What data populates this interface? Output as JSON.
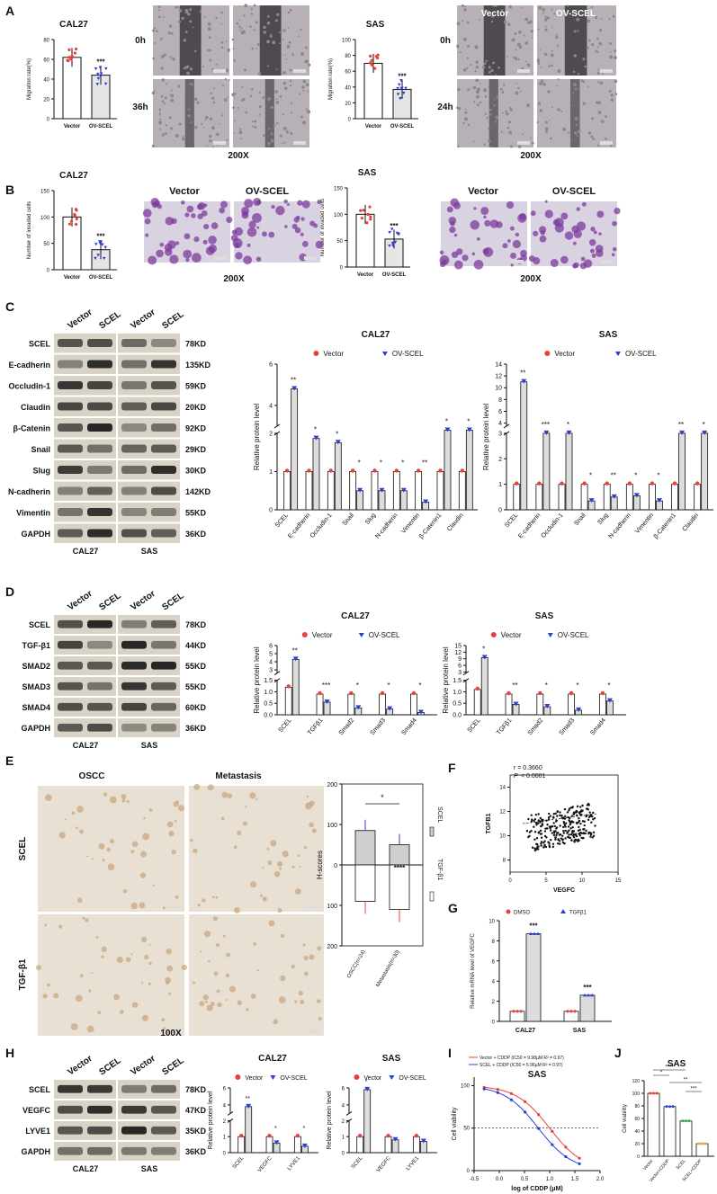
{
  "colors": {
    "vector": "#e8413c",
    "ov": "#2b3fd6",
    "black": "#111111",
    "dmso": "#e8413c",
    "tgfb": "#2b3fd6",
    "crystal": "#7b3b9e",
    "ihc_brown": "#c9a27a",
    "gel": "#d8d3c6"
  },
  "panelA": {
    "label": "A",
    "mag": "200X",
    "cal27": {
      "title": "CAL27",
      "ylabel": "Migration rate(%)",
      "yticks": [
        "0",
        "20",
        "40",
        "60",
        "80"
      ],
      "cats": [
        "Vector",
        "OV-SCEL"
      ],
      "sig": "***",
      "values": [
        62,
        44
      ],
      "ylim": [
        0,
        80
      ]
    },
    "sas": {
      "title": "SAS",
      "ylabel": "Migration rate(%)",
      "yticks": [
        "0",
        "20",
        "40",
        "60",
        "80",
        "100"
      ],
      "cats": [
        "Vector",
        "OV-SCEL"
      ],
      "sig": "***",
      "values": [
        70,
        37
      ],
      "ylim": [
        0,
        100
      ]
    },
    "img_cols": [
      "Vector",
      "OV-SCEL"
    ],
    "rows_cal27": [
      "0h",
      "36h"
    ],
    "rows_sas": [
      "0h",
      "24h"
    ]
  },
  "panelB": {
    "label": "B",
    "mag": "200X",
    "cal27": {
      "title": "CAL27",
      "ylabel": "Number of invaded cells",
      "yticks": [
        "0",
        "50",
        "100",
        "150"
      ],
      "cats": [
        "Vector",
        "OV-SCEL"
      ],
      "sig": "***",
      "values": [
        100,
        38
      ],
      "ylim": [
        0,
        150
      ]
    },
    "sas": {
      "title": "SAS",
      "ylabel": "Number of invaded cells",
      "yticks": [
        "0",
        "50",
        "100",
        "150"
      ],
      "cats": [
        "Vector",
        "OV-SCEL"
      ],
      "sig": "***",
      "values": [
        100,
        53
      ],
      "ylim": [
        0,
        150
      ]
    },
    "img_cols": [
      "Vector",
      "OV-SCEL"
    ]
  },
  "panelC": {
    "label": "C",
    "blot_cols": [
      "Vector",
      "SCEL",
      "Vector",
      "SCEL"
    ],
    "proteins": [
      "SCEL",
      "E-cadherin",
      "Occludin-1",
      "Claudin",
      "β-Catenin",
      "Snail",
      "Slug",
      "N-cadherin",
      "Vimentin",
      "GAPDH"
    ],
    "kd": [
      "78KD",
      "135KD",
      "59KD",
      "20KD",
      "92KD",
      "29KD",
      "30KD",
      "142KD",
      "55KD",
      "36KD"
    ],
    "cells": [
      "CAL27",
      "SAS"
    ],
    "legend": [
      "Vector",
      "OV-SCEL"
    ],
    "ylabel": "Relative protein level",
    "cats": [
      "SCEL",
      "E-cadherin",
      "Occludin-1",
      "Snail",
      "Slug",
      "N-cadherin",
      "Vimentin",
      "β-Catenin1",
      "Claudin"
    ],
    "cal27": {
      "title": "CAL27",
      "sig": [
        "**",
        "*",
        "*",
        "*",
        "*",
        "*",
        "**",
        "*",
        "*"
      ],
      "vector": [
        1,
        1,
        1,
        1,
        1,
        1,
        1,
        1,
        1
      ],
      "ov": [
        4.8,
        2.4,
        2.2,
        0.5,
        0.5,
        0.5,
        0.2,
        2.8,
        2.8
      ],
      "yticks_low": [
        "0",
        "1",
        "2"
      ],
      "yticks_high": [
        "4",
        "6"
      ]
    },
    "sas": {
      "title": "SAS",
      "sig": [
        "**",
        "***",
        "*",
        "*",
        "**",
        "*",
        "*",
        "**",
        "*"
      ],
      "vector": [
        1,
        1,
        1,
        1,
        1,
        1,
        1,
        1,
        1
      ],
      "ov": [
        11,
        3,
        3,
        0.35,
        0.5,
        0.55,
        0.35,
        3,
        3
      ],
      "yticks_low": [
        "0",
        "1",
        "2",
        "3"
      ],
      "yticks_high": [
        "4",
        "6",
        "8",
        "10",
        "12",
        "14"
      ]
    }
  },
  "panelD": {
    "label": "D",
    "blot_cols": [
      "Vector",
      "SCEL",
      "Vector",
      "SCEL"
    ],
    "proteins": [
      "SCEL",
      "TGF-β1",
      "SMAD2",
      "SMAD3",
      "SMAD4",
      "GAPDH"
    ],
    "kd": [
      "78KD",
      "44KD",
      "55KD",
      "55KD",
      "60KD",
      "36KD"
    ],
    "cells": [
      "CAL27",
      "SAS"
    ],
    "legend": [
      "Vector",
      "OV-SCEL"
    ],
    "ylabel": "Relative protein level",
    "cats": [
      "SCEL",
      "TGFβ1",
      "Smad2",
      "Smad3",
      "Smad4"
    ],
    "cal27": {
      "title": "CAL27",
      "sig": [
        "**",
        "***",
        "*",
        "*",
        "*"
      ],
      "vector": [
        1.2,
        0.9,
        0.9,
        0.9,
        0.9
      ],
      "ov": [
        4.3,
        0.55,
        0.3,
        0.25,
        0.1
      ],
      "yticks_low": [
        "0.0",
        "0.5",
        "1.0",
        "1.5"
      ],
      "yticks_high": [
        "3",
        "4",
        "5",
        "6"
      ]
    },
    "sas": {
      "title": "SAS",
      "sig": [
        "*",
        "**",
        "*",
        "*",
        "*"
      ],
      "vector": [
        1.1,
        0.9,
        0.9,
        0.9,
        0.9
      ],
      "ov": [
        9.5,
        0.45,
        0.35,
        0.2,
        0.6
      ],
      "yticks_low": [
        "0.0",
        "0.5",
        "1.0",
        "1.5"
      ],
      "yticks_high": [
        "3",
        "6",
        "9",
        "12",
        "15"
      ]
    }
  },
  "panelE": {
    "label": "E",
    "mag": "100X",
    "cols": [
      "OSCC",
      "Metastasis"
    ],
    "rows": [
      "SCEL",
      "TGF-β1"
    ],
    "ylabel": "H-scores",
    "yticks": [
      "200",
      "100",
      "0",
      "100",
      "200"
    ],
    "cats": [
      "OSCC(n=24)",
      "Metastasis(n=30)"
    ],
    "legend": [
      "SCEL",
      "TGF-β1"
    ],
    "sig_top": "*",
    "sig_bottom": "****",
    "scel": [
      85,
      50
    ],
    "tgfb1": [
      90,
      110
    ]
  },
  "panelF": {
    "label": "F",
    "r_text": "r = 0.3660",
    "p_text": "< 0.0001",
    "p_label": "P",
    "xlabel": "VEGFC",
    "ylabel": "TGFB1",
    "xticks": [
      "0",
      "5",
      "10",
      "15"
    ],
    "yticks": [
      "8",
      "10",
      "12",
      "14"
    ]
  },
  "panelG": {
    "label": "G",
    "legend": [
      "DMSO",
      "TGFβ1"
    ],
    "ylabel": "Relative mRNA level of VEGFC",
    "yticks": [
      "0",
      "2",
      "4",
      "6",
      "8",
      "10"
    ],
    "cats": [
      "CAL27",
      "SAS"
    ],
    "sig": [
      "***",
      "***"
    ],
    "dmso": [
      1,
      1
    ],
    "tgfb": [
      8.7,
      2.6
    ],
    "ylim": [
      0,
      10
    ]
  },
  "panelH": {
    "label": "H",
    "blot_cols": [
      "Vector",
      "SCEL",
      "Vector",
      "SCEL"
    ],
    "proteins": [
      "SCEL",
      "VEGFC",
      "LYVE1",
      "GAPDH"
    ],
    "kd": [
      "78KD",
      "47KD",
      "35KD",
      "36KD"
    ],
    "cells": [
      "CAL27",
      "SAS"
    ],
    "legend": [
      "Vector",
      "OV-SCEL"
    ],
    "ylabel": "Relative protein level",
    "cats": [
      "SCEL",
      "VEGFC",
      "LYVE1"
    ],
    "cal27": {
      "title": "CAL27",
      "sig": [
        "**",
        "*",
        "*"
      ],
      "vector": [
        1,
        1,
        1
      ],
      "ov": [
        3.8,
        0.6,
        0.4
      ],
      "yticks_low": [
        "0",
        "1",
        "2"
      ],
      "yticks_high": [
        "4",
        "6"
      ]
    },
    "sas": {
      "title": "SAS",
      "sig": [
        "*",
        "",
        ""
      ],
      "vector": [
        1,
        1,
        1
      ],
      "ov": [
        5.8,
        0.8,
        0.7
      ],
      "yticks_low": [
        "0",
        "1",
        "2"
      ],
      "yticks_high": [
        "4",
        "6"
      ]
    }
  },
  "panelI": {
    "label": "I",
    "title": "SAS",
    "xlabel": "log of CDDP (μM)",
    "ylabel": "Cell viability",
    "xticks": [
      "-0.5",
      "0.0",
      "0.5",
      "1.0",
      "1.5",
      "2.0"
    ],
    "yticks": [
      "0",
      "50",
      "100"
    ],
    "legend": [
      "Vector + CDDP (IC50 = 9.98μM R² = 0.97)",
      "SCEL + CDDP (IC50 = 5.96μM R² = 0.97)"
    ],
    "ic50": [
      9.98,
      5.96
    ]
  },
  "panelJ": {
    "label": "J",
    "title": "SAS",
    "ylabel": "Cell viability",
    "yticks": [
      "0",
      "20",
      "40",
      "60",
      "80",
      "100",
      "120"
    ],
    "cats": [
      "Vector",
      "Vector+CDDP",
      "SCEL",
      "SCEL+CDDP"
    ],
    "values": [
      100,
      79,
      56,
      20
    ],
    "sig": [
      "*",
      "****",
      "**",
      "***"
    ],
    "ylim": [
      0,
      120
    ]
  },
  "chart_data": [
    {
      "type": "bar",
      "panel": "A",
      "title": "CAL27",
      "categories": [
        "Vector",
        "OV-SCEL"
      ],
      "values": [
        62,
        44
      ],
      "ylabel": "Migration rate(%)",
      "ylim": [
        0,
        80
      ]
    },
    {
      "type": "bar",
      "panel": "A",
      "title": "SAS",
      "categories": [
        "Vector",
        "OV-SCEL"
      ],
      "values": [
        70,
        37
      ],
      "ylabel": "Migration rate(%)",
      "ylim": [
        0,
        100
      ]
    },
    {
      "type": "bar",
      "panel": "B",
      "title": "CAL27",
      "categories": [
        "Vector",
        "OV-SCEL"
      ],
      "values": [
        100,
        38
      ],
      "ylabel": "Number of invaded cells",
      "ylim": [
        0,
        150
      ]
    },
    {
      "type": "bar",
      "panel": "B",
      "title": "SAS",
      "categories": [
        "Vector",
        "OV-SCEL"
      ],
      "values": [
        100,
        53
      ],
      "ylabel": "Number of invaded cells",
      "ylim": [
        0,
        150
      ]
    },
    {
      "type": "bar",
      "panel": "G",
      "categories": [
        "CAL27",
        "SAS"
      ],
      "series": [
        {
          "name": "DMSO",
          "values": [
            1,
            1
          ]
        },
        {
          "name": "TGFβ1",
          "values": [
            8.7,
            2.6
          ]
        }
      ],
      "ylabel": "Relative mRNA level of VEGFC",
      "ylim": [
        0,
        10
      ]
    },
    {
      "type": "bar",
      "panel": "J",
      "title": "SAS",
      "categories": [
        "Vector",
        "Vector+CDDP",
        "SCEL",
        "SCEL+CDDP"
      ],
      "values": [
        100,
        79,
        56,
        20
      ],
      "ylabel": "Cell viability",
      "ylim": [
        0,
        120
      ]
    }
  ]
}
